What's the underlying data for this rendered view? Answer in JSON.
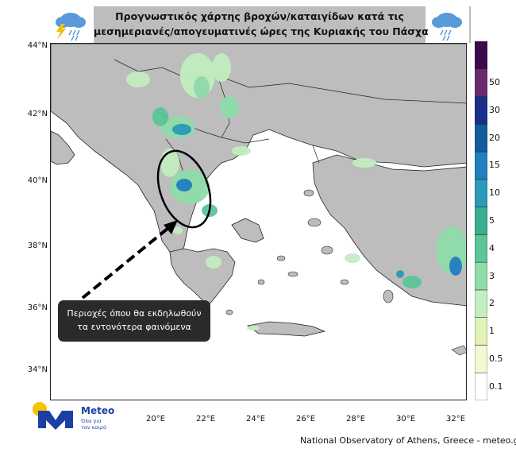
{
  "title": {
    "line1": "Προγνωστικός χάρτης βροχών/καταιγίδων κατά τις",
    "line2": "μεσημεριανές/απογευματινές ώρες της Κυριακής του Πάσχα"
  },
  "icons": {
    "left": "storm-cloud-icon",
    "right": "rain-cloud-icon"
  },
  "latitude_labels": [
    "44°N",
    "42°N",
    "40°N",
    "38°N",
    "36°N",
    "34°N"
  ],
  "longitude_labels": [
    "20°E",
    "22°E",
    "24°E",
    "26°E",
    "28°E",
    "30°E",
    "32°E"
  ],
  "colorbar": {
    "labels": [
      "0.1",
      "0.5",
      "1",
      "2",
      "3",
      "4",
      "5",
      "10",
      "15",
      "20",
      "30",
      "50"
    ],
    "colors": [
      "#ffffff",
      "#f2f8d2",
      "#e0f2b8",
      "#c2eec0",
      "#8fdcab",
      "#5cc59a",
      "#3aae8e",
      "#2a9bb8",
      "#1f7fc0",
      "#115d9c",
      "#1a2f8c",
      "#6a2a6e",
      "#3a0a4a"
    ]
  },
  "callout": {
    "line1": "Περιοχές όπου θα εκδηλωθούν",
    "line2": "τα εντονότερα φαινόμενα"
  },
  "logo": {
    "name": "Meteo",
    "tagline1": "Όλα για",
    "tagline2": "τον καιρό"
  },
  "credit": "National Observatory of Athens, Greece - meteo.gr",
  "colors": {
    "sea": "#ffffff",
    "land": "#bdbdbd",
    "rain_light": "#c2eec0",
    "rain_mid": "#3aae8e",
    "rain_heavy": "#2a9bb8"
  }
}
